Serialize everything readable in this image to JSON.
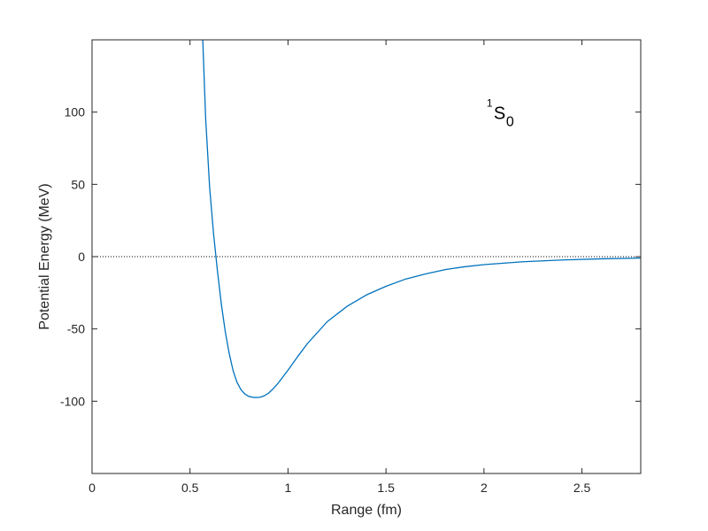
{
  "chart_data": {
    "type": "line",
    "title": "",
    "xlabel": "Range (fm)",
    "ylabel": "Potential Energy (MeV)",
    "xlim": [
      0,
      2.8
    ],
    "ylim": [
      -150,
      150
    ],
    "xticks": [
      0,
      0.5,
      1,
      1.5,
      2,
      2.5
    ],
    "xtick_labels": [
      "0",
      "0.5",
      "1",
      "1.5",
      "2",
      "2.5"
    ],
    "yticks": [
      -100,
      -50,
      0,
      50,
      100
    ],
    "ytick_labels": [
      "-100",
      "-50",
      "0",
      "50",
      "100"
    ],
    "grid": false,
    "legend": "none",
    "annotation": {
      "base": "S",
      "superscript": "1",
      "subscript": "0",
      "x": 2.05,
      "y": 100
    },
    "reference_line": {
      "y": 0,
      "style": "dotted",
      "color": "#000000"
    },
    "series": [
      {
        "color": "#0072BD",
        "x": [
          0.565,
          0.58,
          0.6,
          0.62,
          0.64,
          0.66,
          0.68,
          0.7,
          0.72,
          0.74,
          0.76,
          0.78,
          0.8,
          0.82,
          0.84,
          0.86,
          0.88,
          0.9,
          0.92,
          0.95,
          1.0,
          1.05,
          1.1,
          1.2,
          1.3,
          1.4,
          1.5,
          1.6,
          1.7,
          1.8,
          1.9,
          2.0,
          2.2,
          2.4,
          2.6,
          2.8
        ],
        "y": [
          150,
          95,
          48,
          16,
          -10,
          -33,
          -52,
          -67,
          -79,
          -87,
          -92,
          -95,
          -96.7,
          -97.3,
          -97.5,
          -97.2,
          -96.2,
          -94.5,
          -92,
          -87.5,
          -78.5,
          -69,
          -60,
          -45,
          -34.5,
          -26.5,
          -20.5,
          -15.5,
          -12,
          -9,
          -7,
          -5.5,
          -3.5,
          -2.3,
          -1.5,
          -1.0
        ]
      }
    ]
  }
}
